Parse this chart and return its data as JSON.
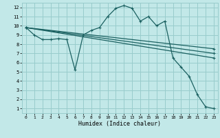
{
  "xlabel": "Humidex (Indice chaleur)",
  "bg_color": "#c2e8e8",
  "grid_color": "#98cccc",
  "line_color": "#1a6060",
  "xlim": [
    -0.5,
    23.5
  ],
  "ylim": [
    0.5,
    12.5
  ],
  "xticks": [
    0,
    1,
    2,
    3,
    4,
    5,
    6,
    7,
    8,
    9,
    10,
    11,
    12,
    13,
    14,
    15,
    16,
    17,
    18,
    19,
    20,
    21,
    22,
    23
  ],
  "yticks": [
    1,
    2,
    3,
    4,
    5,
    6,
    7,
    8,
    9,
    10,
    11,
    12
  ],
  "series": [
    {
      "x": [
        0,
        1,
        2,
        3,
        4,
        5,
        6,
        7,
        8,
        9,
        10,
        11,
        12,
        13,
        14,
        15,
        16,
        17,
        18,
        19,
        20,
        21,
        22,
        23
      ],
      "y": [
        9.8,
        9.0,
        8.5,
        8.5,
        8.6,
        8.5,
        5.2,
        9.0,
        9.5,
        9.8,
        11.0,
        11.9,
        12.2,
        11.9,
        10.5,
        11.0,
        10.0,
        10.5,
        6.5,
        5.5,
        4.5,
        2.5,
        1.2,
        1.0
      ]
    },
    {
      "x": [
        0,
        23
      ],
      "y": [
        9.8,
        7.5
      ]
    },
    {
      "x": [
        0,
        23
      ],
      "y": [
        9.8,
        7.0
      ]
    },
    {
      "x": [
        0,
        23
      ],
      "y": [
        9.8,
        6.5
      ]
    }
  ]
}
